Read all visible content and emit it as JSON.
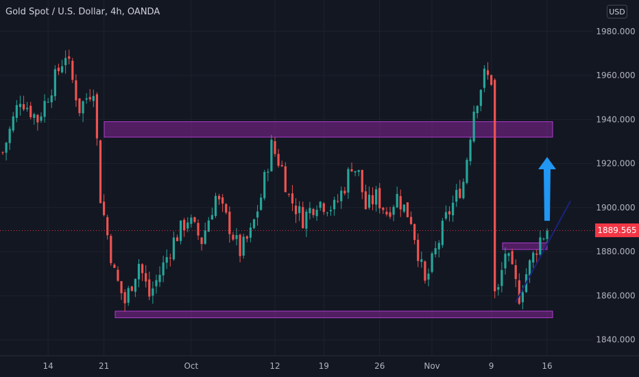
{
  "chart": {
    "title": "Gold Spot / U.S. Dollar, 4h, OANDA",
    "currency": "USD",
    "last_price": "1889.565"
  },
  "colors": {
    "background": "#131722",
    "grid": "#1e222d",
    "up": "#26a69a",
    "down": "#ef5350",
    "zone_fill": "#9c27b0",
    "zone_stroke": "#b03ccf",
    "arrow": "#2196f3",
    "trendline": "#1a237e",
    "axis_text": "#b2b5be",
    "price_line": "#f23645"
  },
  "chart_data": {
    "type": "candlestick",
    "title": "Gold Spot / U.S. Dollar, 4h, OANDA",
    "ylim": [
      1834,
      1993
    ],
    "y_ticks": [
      "1840.000",
      "1860.000",
      "1880.000",
      "1900.000",
      "1920.000",
      "1940.000",
      "1960.000",
      "1980.000"
    ],
    "x_ticks": [
      "14",
      "21",
      "Oct",
      "12",
      "19",
      "26",
      "Nov",
      "9",
      "16"
    ],
    "last_price": 1889.565,
    "close_anchors": [
      [
        0,
        1925
      ],
      [
        5,
        1950
      ],
      [
        10,
        1940
      ],
      [
        14,
        1955
      ],
      [
        18,
        1970
      ],
      [
        22,
        1945
      ],
      [
        26,
        1955
      ],
      [
        28,
        1905
      ],
      [
        32,
        1870
      ],
      [
        35,
        1857
      ],
      [
        39,
        1875
      ],
      [
        42,
        1860
      ],
      [
        45,
        1870
      ],
      [
        49,
        1885
      ],
      [
        53,
        1895
      ],
      [
        57,
        1885
      ],
      [
        61,
        1905
      ],
      [
        64,
        1895
      ],
      [
        68,
        1880
      ],
      [
        71,
        1888
      ],
      [
        74,
        1905
      ],
      [
        77,
        1928
      ],
      [
        80,
        1918
      ],
      [
        82,
        1905
      ],
      [
        86,
        1895
      ],
      [
        90,
        1903
      ],
      [
        95,
        1900
      ],
      [
        98,
        1910
      ],
      [
        100,
        1920
      ],
      [
        102,
        1915
      ],
      [
        104,
        1900
      ],
      [
        107,
        1905
      ],
      [
        110,
        1898
      ],
      [
        113,
        1905
      ],
      [
        117,
        1895
      ],
      [
        119,
        1880
      ],
      [
        121,
        1865
      ],
      [
        124,
        1880
      ],
      [
        127,
        1895
      ],
      [
        130,
        1905
      ],
      [
        132,
        1912
      ],
      [
        135,
        1945
      ],
      [
        138,
        1960
      ],
      [
        140,
        1958
      ],
      [
        141,
        1875
      ],
      [
        142,
        1862
      ],
      [
        144,
        1880
      ],
      [
        146,
        1870
      ],
      [
        148,
        1860
      ],
      [
        150,
        1870
      ],
      [
        152,
        1878
      ],
      [
        154,
        1886
      ],
      [
        156,
        1889.565
      ]
    ],
    "zones": [
      {
        "name": "resistance-zone",
        "y_low": 1932,
        "y_high": 1939
      },
      {
        "name": "support-zone",
        "y_low": 1850,
        "y_high": 1853
      },
      {
        "name": "breakout-zone",
        "y_low": 1881,
        "y_high": 1884
      }
    ],
    "projection_arrow": {
      "from_y": 1894,
      "to_y": 1923
    },
    "trendline": {
      "from_y": 1857,
      "to_y": 1903
    }
  }
}
